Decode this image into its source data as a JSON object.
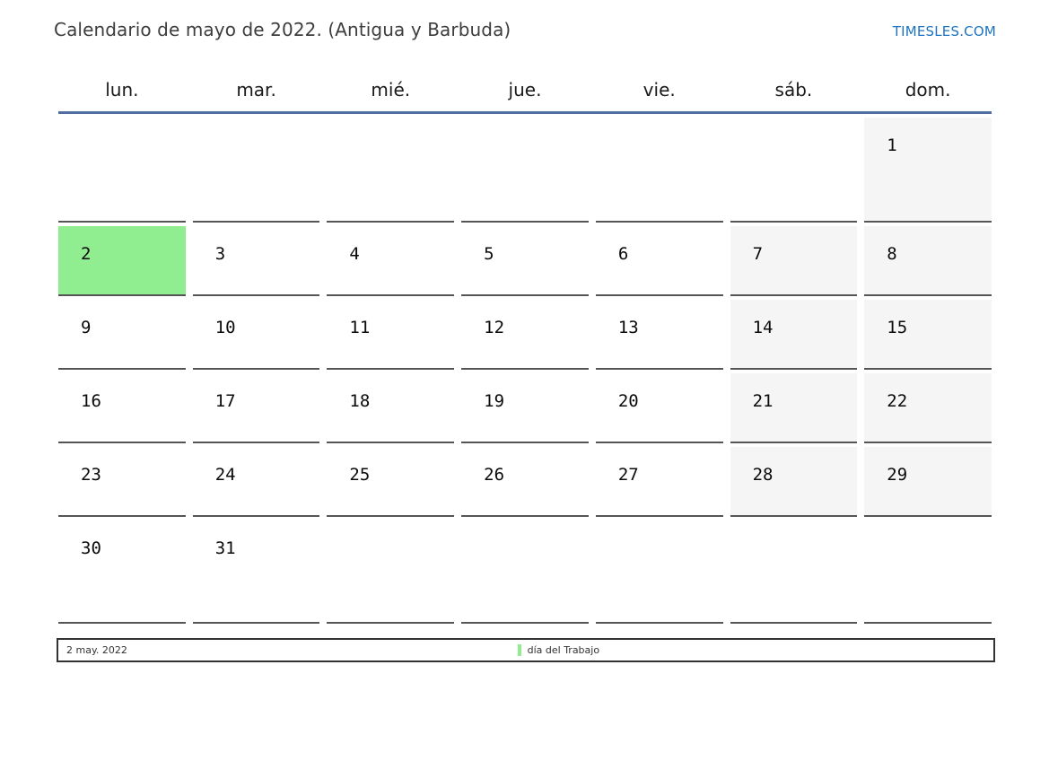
{
  "header": {
    "title": "Calendario de mayo de 2022. (Antigua y Barbuda)",
    "brand": "TIMESLES.COM"
  },
  "calendar": {
    "weekdays": [
      "lun.",
      "mar.",
      "mié.",
      "jue.",
      "vie.",
      "sáb.",
      "dom."
    ],
    "weeks": [
      [
        {},
        {},
        {},
        {},
        {},
        {},
        {
          "day": 1,
          "weekend": true
        }
      ],
      [
        {
          "day": 2,
          "holiday": true
        },
        {
          "day": 3
        },
        {
          "day": 4
        },
        {
          "day": 5
        },
        {
          "day": 6
        },
        {
          "day": 7,
          "weekend": true
        },
        {
          "day": 8,
          "weekend": true
        }
      ],
      [
        {
          "day": 9
        },
        {
          "day": 10
        },
        {
          "day": 11
        },
        {
          "day": 12
        },
        {
          "day": 13
        },
        {
          "day": 14,
          "weekend": true
        },
        {
          "day": 15,
          "weekend": true
        }
      ],
      [
        {
          "day": 16
        },
        {
          "day": 17
        },
        {
          "day": 18
        },
        {
          "day": 19
        },
        {
          "day": 20
        },
        {
          "day": 21,
          "weekend": true
        },
        {
          "day": 22,
          "weekend": true
        }
      ],
      [
        {
          "day": 23
        },
        {
          "day": 24
        },
        {
          "day": 25
        },
        {
          "day": 26
        },
        {
          "day": 27
        },
        {
          "day": 28,
          "weekend": true
        },
        {
          "day": 29,
          "weekend": true
        }
      ],
      [
        {
          "day": 30
        },
        {
          "day": 31
        },
        {},
        {},
        {},
        {},
        {}
      ]
    ]
  },
  "legend": {
    "date": "2 may. 2022",
    "holiday_label": "día del Trabajo"
  },
  "colors": {
    "holiday_green": "#90ee90",
    "weekend_gray": "#f5f5f5",
    "header_line_blue": "#4e6f9f",
    "cell_border": "#555555",
    "brand_blue": "#1e73be",
    "legend_border": "#333333"
  }
}
